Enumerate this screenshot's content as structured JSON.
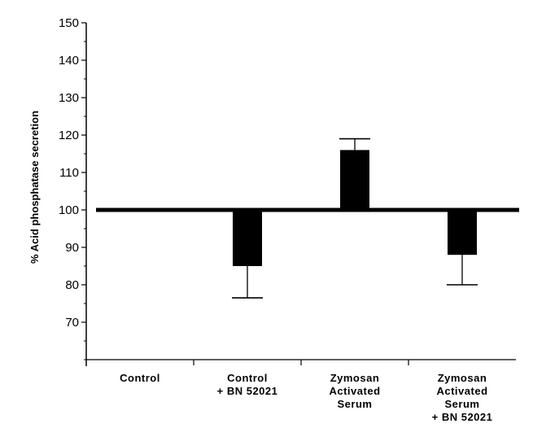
{
  "chart_data": {
    "type": "bar",
    "baseline": 100,
    "ylabel": "% Acid phosphatase secretion",
    "xlabel": "",
    "title": "",
    "ylim": [
      60,
      150
    ],
    "yticks": [
      70,
      80,
      90,
      100,
      110,
      120,
      130,
      140,
      150
    ],
    "grid": false,
    "categories": [
      [
        "Control"
      ],
      [
        "Control",
        "+ BN 52021"
      ],
      [
        "Zymosan",
        "Activated",
        "Serum"
      ],
      [
        "Zymosan",
        "Activated",
        "Serum",
        "+ BN 52021"
      ]
    ],
    "values": [
      100,
      85,
      116,
      88
    ],
    "errors": [
      0,
      8.5,
      3,
      8
    ],
    "colors": {
      "bar": "#000000",
      "axis": "#000000"
    }
  }
}
